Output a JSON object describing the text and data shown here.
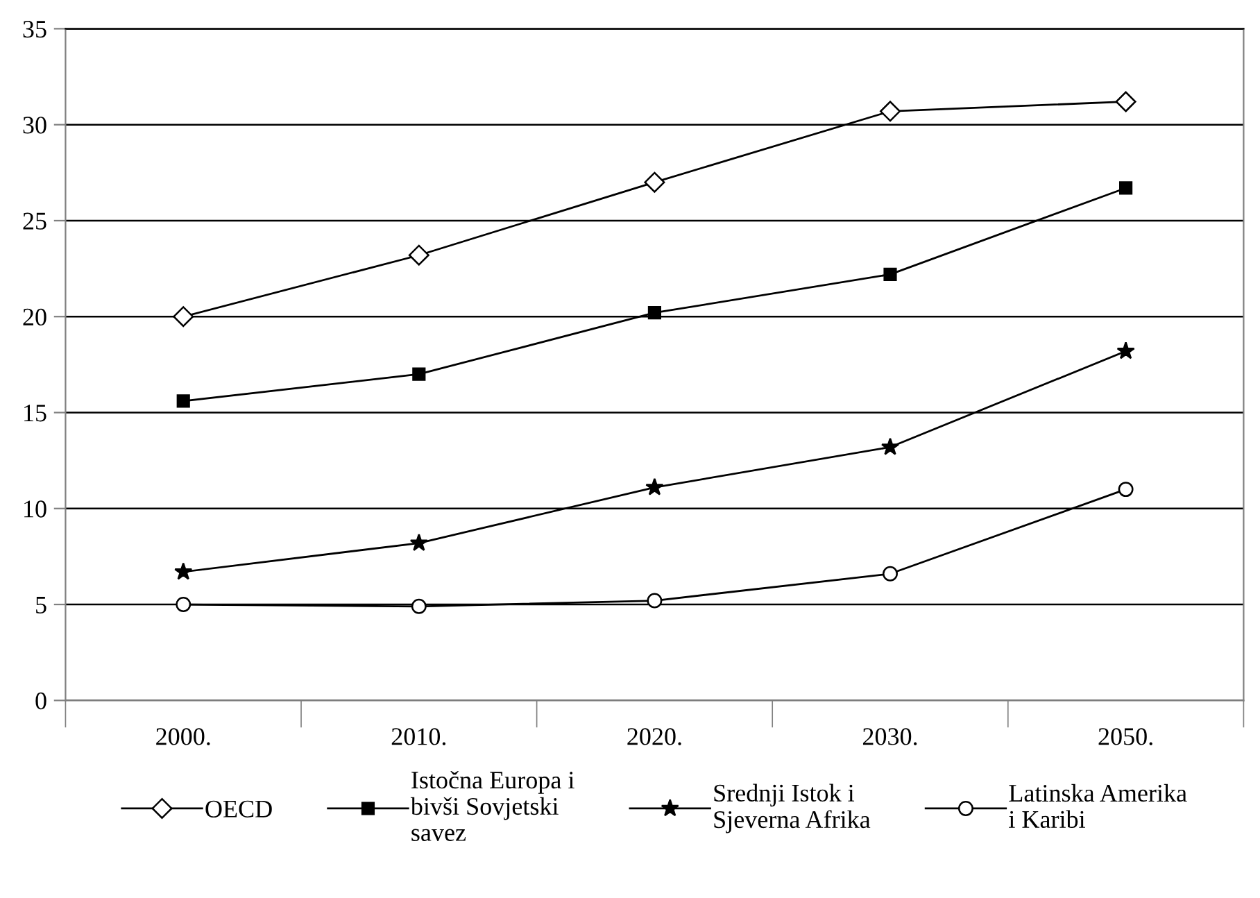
{
  "chart_data": {
    "type": "line",
    "categories": [
      "2000.",
      "2010.",
      "2020.",
      "2030.",
      "2050."
    ],
    "series": [
      {
        "name": "OECD",
        "color": "#000000",
        "marker": "diamond",
        "values": [
          20.0,
          23.2,
          27.0,
          30.7,
          31.2
        ]
      },
      {
        "name": "Istočna Europa i\nbivši Sovjetski\nsavez",
        "color": "#000000",
        "marker": "square",
        "values": [
          15.6,
          17.0,
          20.2,
          22.2,
          26.7
        ]
      },
      {
        "name": "Srednji Istok i\nSjeverna Afrika",
        "color": "#000000",
        "marker": "star",
        "values": [
          6.7,
          8.2,
          11.1,
          13.2,
          18.2
        ]
      },
      {
        "name": "Latinska Amerika\ni Karibi",
        "color": "#000000",
        "marker": "circle",
        "values": [
          5.0,
          4.9,
          5.2,
          6.6,
          11.0
        ]
      }
    ],
    "ylim": [
      0,
      35
    ],
    "yticks": [
      0,
      5,
      10,
      15,
      20,
      25,
      30,
      35
    ],
    "grid": "y",
    "legend": "bottom",
    "line_style": "solid"
  }
}
